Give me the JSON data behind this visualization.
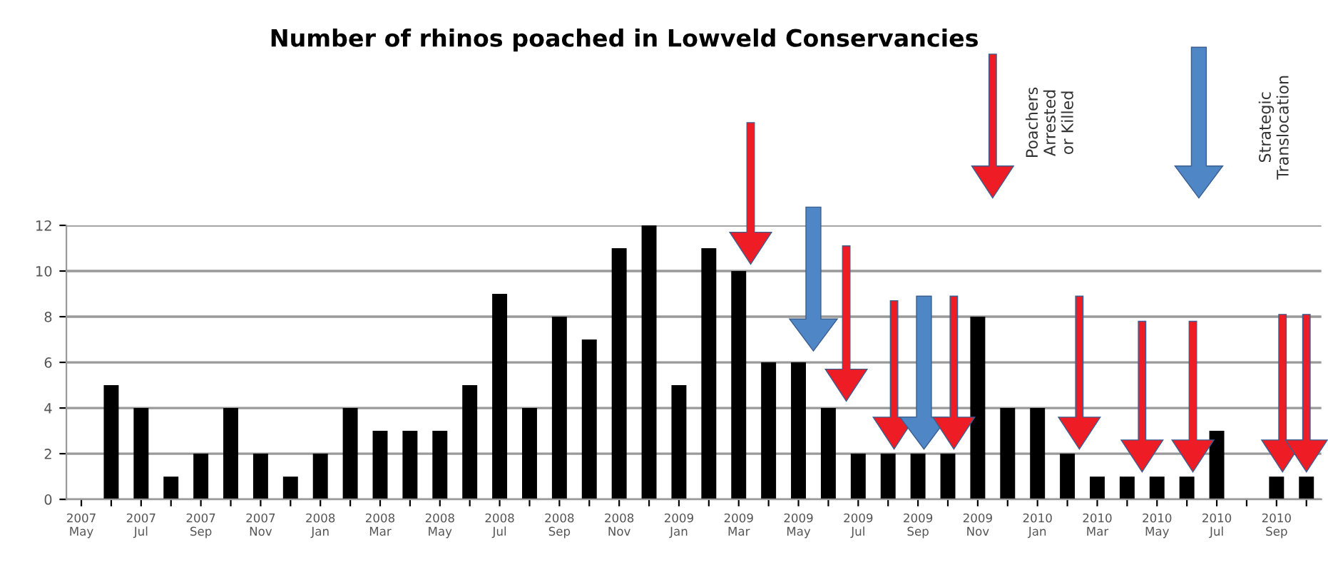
{
  "chart_data": {
    "type": "bar",
    "title": "Number of rhinos poached in Lowveld Conservancies",
    "categories": [
      "2007\nMay",
      null,
      "2007\nJul",
      null,
      "2007\nSep",
      null,
      "2007\nNov",
      null,
      "2008\nJan",
      null,
      "2008\nMar",
      null,
      "2008\nMay",
      null,
      "2008\nJul",
      null,
      "2008\nSep",
      null,
      "2008\nNov",
      null,
      "2009\nJan",
      null,
      "2009\nMar",
      null,
      "2009\nMay",
      null,
      "2009\nJul",
      null,
      "2009\nSep",
      null,
      "2009\nNov",
      null,
      "2010\nJan",
      null,
      "2010\nMar",
      null,
      "2010\nMay",
      null,
      "2010\nJul",
      null,
      "2010\nSep",
      null
    ],
    "values": [
      0,
      5,
      4,
      1,
      2,
      4,
      2,
      1,
      2,
      4,
      3,
      3,
      3,
      5,
      9,
      4,
      8,
      7,
      11,
      12,
      5,
      11,
      10,
      6,
      6,
      4,
      2,
      2,
      2,
      2,
      8,
      4,
      4,
      2,
      1,
      1,
      1,
      1,
      3,
      0,
      1,
      1
    ],
    "color": "#000000",
    "ylim": [
      0,
      12
    ],
    "yticks": [
      0,
      2,
      4,
      6,
      8,
      10,
      12
    ],
    "grid": "y",
    "annotations": [
      "Poachers\nArrested\nor Killed",
      "Strategic\nTranslocation"
    ]
  }
}
